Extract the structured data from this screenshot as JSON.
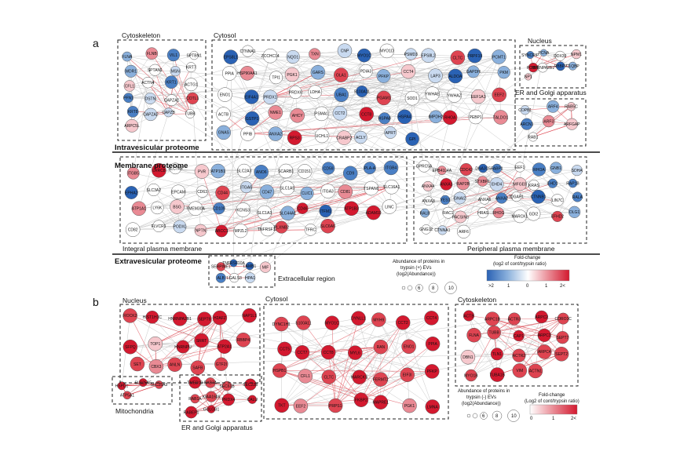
{
  "panel_a": {
    "letter": "a",
    "compartments": {
      "cytoskeleton": "Cytoskeleton",
      "cytosol": "Cytosol",
      "nucleus": "Nucleus",
      "er_golgi": "ER and Golgi apparatus",
      "integral_pm": "Integral plasma membrane",
      "peripheral_pm": "Peripheral plasma membrane",
      "extracellular": "Extracellular region"
    },
    "sections": {
      "intravesicular": "Intravesicular proteome",
      "membrane": "Membrane proteome",
      "extravesicular": "Extravesicular proteome"
    },
    "legend": {
      "size_title": [
        "Abundance of proteins in",
        "trypsin (+) EVs",
        "(log2(Abundance))"
      ],
      "size_ticks": [
        "6",
        "8",
        "10"
      ],
      "color_title": [
        "Fold-change",
        "(log2 of cont/trypsin ratio)"
      ],
      "color_ticks": [
        ">2",
        "1",
        "0",
        "1",
        "2<"
      ],
      "colors": [
        "#2a62b4",
        "#8ab0dc",
        "#ffffff",
        "#e98a94",
        "#d3192f"
      ]
    },
    "nodes": {
      "cytoskeleton": [
        "FLNA",
        "FLNB",
        "VIL1",
        "SPTBN1",
        "WDR1",
        "SPTAN1",
        "MSN",
        "KRT7",
        "CFL1",
        "ACTN4",
        "KRT1",
        "ACTG1",
        "PFN1",
        "DSTN",
        "CAPZA1",
        "COTL1",
        "KRT8",
        "CAPZA2",
        "CAPZB",
        "TUBB",
        "ARPC5L"
      ],
      "cytosol": [
        "EPS8L1",
        "CTNNA1",
        "ZCCHC14",
        "NQO1",
        "TXN",
        "CNP",
        "MYO1C",
        "MYO1D",
        "PSMD3",
        "EPS8L2",
        "CLTC",
        "PRPF19",
        "PCMT1",
        "PPIA",
        "HSP90AA1",
        "TPI1",
        "PGK1",
        "GARS",
        "OLA1",
        "PDIA3",
        "PFKP",
        "CCT4",
        "LAP3",
        "ALDOA",
        "GAPDH",
        "PKM",
        "ENO1",
        "EIF4A1",
        "PRDX1",
        "PRDX6",
        "LDHA",
        "UBA1",
        "S100A11",
        "PGAM1",
        "SOD1",
        "YWHAE",
        "YWHAZ",
        "EEF1A1",
        "EEF2",
        "ACTB",
        "GSTP1",
        "NME1",
        "AHCY",
        "PSMA1",
        "CCT2",
        "CCT8",
        "HSPA8",
        "HSPA4",
        "IMPDH2",
        "RHOA",
        "PEBP1",
        "TALDO1",
        "GNAS",
        "PPIB",
        "ANXA2",
        "RPS3",
        "UCHL1",
        "CRABP2",
        "ACLY",
        "APRT",
        "GPI"
      ],
      "nucleus": [
        "SYNCRIP",
        "PCNA",
        "DDX39",
        "NPM1",
        "PCBP1",
        "HNRNPA2B1",
        "RBBP7",
        "C1QBP",
        "NP1"
      ],
      "er_golgi_a": [
        "COPB1",
        "ARF4",
        "RAB5C",
        "ARCN1",
        "ARF3",
        "ARFGAP",
        "RAB1"
      ],
      "integral_pm": [
        "ITGB5",
        "LRRC8",
        "SLC7A5",
        "PVR",
        "ATP1B1",
        "SLC2A3",
        "ANO6",
        "SCARB1",
        "CD151",
        "CD59",
        "CD9",
        "PLA-A",
        "ITGB4",
        "EPHA2",
        "SLC3A2",
        "EPCAM",
        "CD63",
        "CD44",
        "ITGA6",
        "CD47",
        "SLC1A5",
        "CLIC1",
        "ITGA3",
        "CD81",
        "TSPAN6",
        "SLC16A1",
        "ATP1A1",
        "LY6K",
        "BSG",
        "TMEM30A",
        "CD109",
        "KCNS3",
        "SLC1A3",
        "SLC44A1",
        "CD46",
        "ITFM1",
        "ATP1B3",
        "ADAM10",
        "LINC",
        "CD82",
        "FLVCR1",
        "PODXL",
        "NPTN",
        "ABCC1",
        "MPZL2",
        "TNFRSF1B",
        "PLXNB2",
        "TFRC",
        "SLC6A6"
      ],
      "peripheral_pm": [
        "GPRC5A",
        "EPB41L4A",
        "CDC42",
        "DNAJC5",
        "FABP1",
        "EEF1",
        "RHOA",
        "GNB1",
        "SDHA",
        "ANXA4",
        "ANXA1",
        "RAP2B",
        "STXBP1",
        "EHD4",
        "MFGE8",
        "KRAS",
        "EHD1",
        "RAP1B",
        "ANXA3",
        "YES1",
        "GNAI2",
        "ANXA6",
        "ANXA2",
        "IQGAP1",
        "CTNNB1",
        "LIN7C",
        "RALA",
        "RALB",
        "RAC1",
        "PACSIN3",
        "HRAS",
        "RHOG",
        "MARCKS",
        "GDI2",
        "EFHD2",
        "DLG1",
        "GNG12",
        "CTNNA1",
        "ARF6"
      ],
      "extracellular": [
        "SERPINE1",
        "TNFRSF10A",
        "LAMB1",
        "MIF",
        "ALB",
        "LGALS3",
        "HPA1"
      ]
    }
  },
  "panel_b": {
    "letter": "b",
    "compartments": {
      "nucleus": "Nucleus",
      "cytosol": "Cytosol",
      "cytoskeleton": "Cytoskeleton",
      "mitochondria": "Mitochondria",
      "er_golgi": "ER and Golgi apparatus"
    },
    "legend": {
      "size_title": [
        "Abundance of proteins in",
        "trypsin (-) EVs",
        "(log2(Abundance))"
      ],
      "size_ticks": [
        "6",
        "8",
        "10"
      ],
      "color_title": [
        "Fold-change",
        "(Log2 of cont/trypsin ratio)"
      ],
      "color_ticks": [
        "0",
        "1",
        "2<"
      ],
      "colors": [
        "#ffffff",
        "#e98a94",
        "#d3192f"
      ]
    },
    "nodes": {
      "nucleus": [
        "ROCK2",
        "HIST1H1C",
        "HNRNPA2B1",
        "SEPT9",
        "H2AFZ",
        "NAP1L1",
        "SFPQ",
        "TOP1",
        "HNRNPU",
        "SRRT",
        "ATP2A1",
        "RBBP4",
        "SET",
        "CBX3",
        "ANLN",
        "SAFB",
        "GTF2I"
      ],
      "cytosol": [
        "DYNC1H1",
        "S100A11",
        "MYO1C",
        "DYNLL1",
        "MYH9",
        "CCT2",
        "CCT4",
        "CCT5",
        "CCT7",
        "CCT8",
        "MYL6",
        "RAN",
        "ENO1",
        "PPIA",
        "HSPB1",
        "CFL1",
        "CLTC",
        "MARCKS",
        "FERMT2",
        "EIF3I",
        "PFKP",
        "TKT",
        "EEF2",
        "PRPS1",
        "FKBP2",
        "MAPRE1",
        "PGK1",
        "LMNA"
      ],
      "cytoskeleton": [
        "ACTB",
        "ARPC1B",
        "ACTR3",
        "ARPC2",
        "CORO1C",
        "FLNA",
        "TUBB",
        "CAP1",
        "ARPC3",
        "SEPT7",
        "DBN1",
        "TLN1",
        "ACTR2",
        "ARPC4",
        "SEPT2",
        "MYO1B",
        "TUBA1B",
        "VIM",
        "ACTN1"
      ],
      "mitochondria": [
        "HSPD1",
        "SLC25A5",
        "SLC25A3",
        "ATP5A1"
      ],
      "er_golgi": [
        "TMED10",
        "RAB7A",
        "SEC61B",
        "SEC22B",
        "RAB1A",
        "KIAA1609",
        "PRDX4",
        "CALU",
        "RABEP1",
        "GOLGB1"
      ]
    }
  }
}
